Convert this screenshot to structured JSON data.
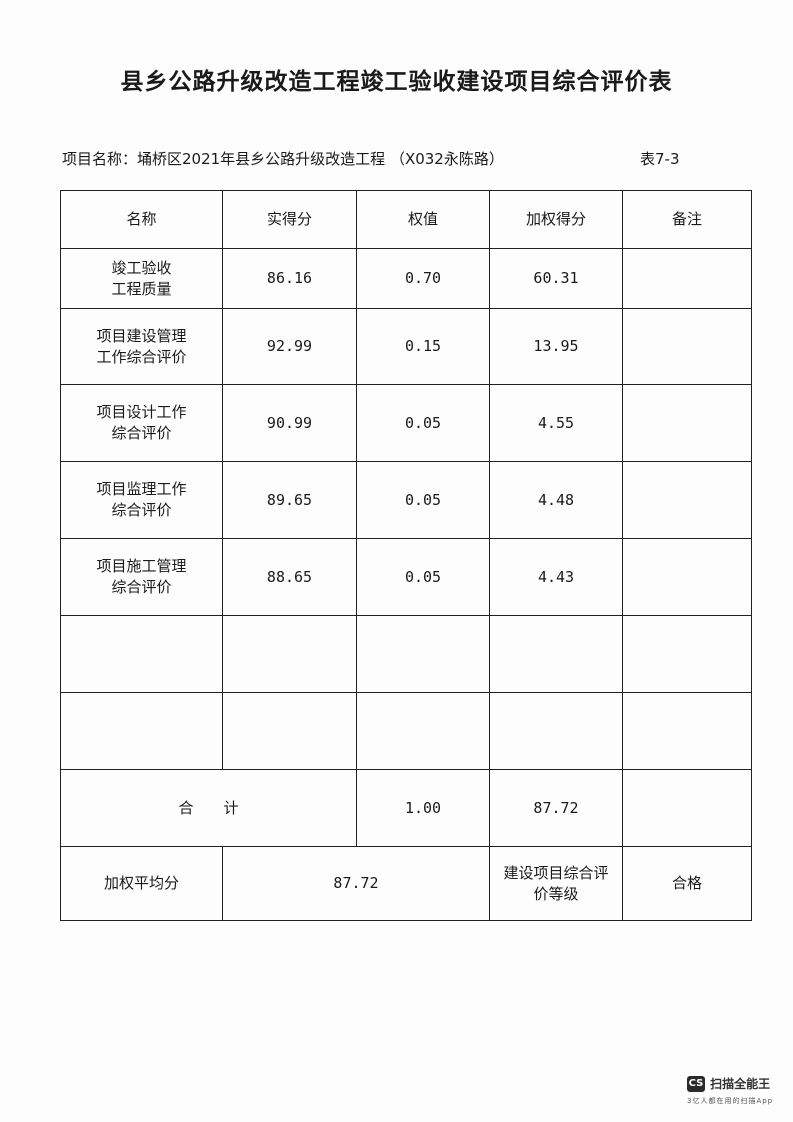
{
  "title": "县乡公路升级改造工程竣工验收建设项目综合评价表",
  "project_line": "项目名称：埇桥区2021年县乡公路升级改造工程 （X032永陈路）",
  "table_no": "表7-3",
  "headers": [
    "名称",
    "实得分",
    "权值",
    "加权得分",
    "备注"
  ],
  "rows": [
    {
      "name_l1": "竣工验收",
      "name_l2": "工程质量",
      "score": "86.16",
      "weight": "0.70",
      "weighted": "60.31",
      "note": ""
    },
    {
      "name_l1": "项目建设管理",
      "name_l2": "工作综合评价",
      "score": "92.99",
      "weight": "0.15",
      "weighted": "13.95",
      "note": ""
    },
    {
      "name_l1": "项目设计工作",
      "name_l2": "综合评价",
      "score": "90.99",
      "weight": "0.05",
      "weighted": "4.55",
      "note": ""
    },
    {
      "name_l1": "项目监理工作",
      "name_l2": "综合评价",
      "score": "89.65",
      "weight": "0.05",
      "weighted": "4.48",
      "note": ""
    },
    {
      "name_l1": "项目施工管理",
      "name_l2": "综合评价",
      "score": "88.65",
      "weight": "0.05",
      "weighted": "4.43",
      "note": ""
    }
  ],
  "total": {
    "label": "合　　计",
    "weight": "1.00",
    "weighted": "87.72"
  },
  "summary": {
    "avg_label": "加权平均分",
    "avg_value": "87.72",
    "grade_label_l1": "建设项目综合评",
    "grade_label_l2": "价等级",
    "grade_value": "合格"
  },
  "watermark": {
    "logo": "CS",
    "name": "扫描全能王",
    "sub": "3亿人都在用的扫描App"
  }
}
